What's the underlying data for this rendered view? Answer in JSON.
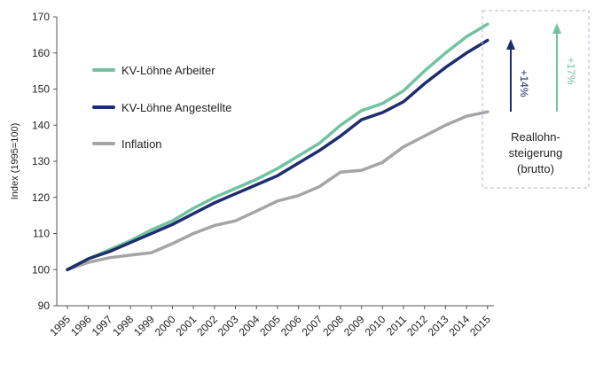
{
  "chart_data": {
    "type": "line",
    "ylabel": "Index (1995=100)",
    "ylim": [
      90,
      170
    ],
    "yticks": [
      90,
      100,
      110,
      120,
      130,
      140,
      150,
      160,
      170
    ],
    "x": [
      "1995",
      "1996",
      "1997",
      "1998",
      "1999",
      "2000",
      "2001",
      "2002",
      "2003",
      "2004",
      "2005",
      "2006",
      "2007",
      "2008",
      "2009",
      "2010",
      "2011",
      "2012",
      "2013",
      "2014",
      "2015"
    ],
    "series": [
      {
        "name": "KV-Löhne Arbeiter",
        "color": "#72c2a0",
        "values": [
          100,
          103,
          105.5,
          108,
          111,
          113.5,
          117,
          120,
          122.5,
          125,
          128,
          131.5,
          135,
          140,
          144,
          146,
          149.5,
          155,
          160,
          164.5,
          168
        ]
      },
      {
        "name": "KV-Löhne Angestellte",
        "color": "#1e2d6e",
        "values": [
          100,
          103,
          105,
          107.5,
          110,
          112.5,
          115.5,
          118.5,
          121,
          123.5,
          126,
          129.5,
          133,
          137,
          141.5,
          143.5,
          146.5,
          151.5,
          156,
          160,
          163.5
        ]
      },
      {
        "name": "Inflation",
        "color": "#a5a5a5",
        "values": [
          100,
          102,
          103.3,
          104,
          104.7,
          107.2,
          110,
          112.2,
          113.5,
          116.2,
          119,
          120.5,
          123,
          127,
          127.5,
          129.7,
          134,
          137,
          140,
          142.5,
          143.7
        ]
      }
    ],
    "legend_position": "top-left",
    "grid": false,
    "annotations": {
      "angestellte_gain": "+14%",
      "arbeiter_gain": "+17%",
      "box_label_lines": [
        "Reallohn-",
        "steigerung",
        "(brutto)"
      ]
    }
  }
}
